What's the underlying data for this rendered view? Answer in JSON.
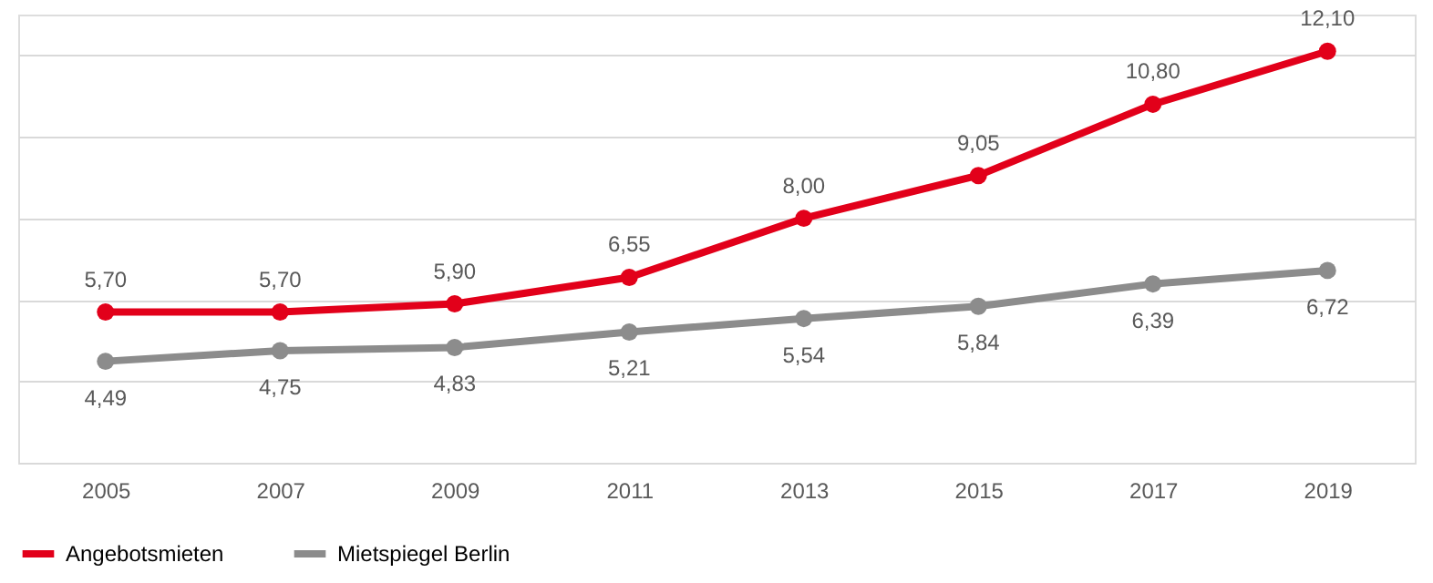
{
  "chart_data": {
    "type": "line",
    "categories": [
      "2005",
      "2007",
      "2009",
      "2011",
      "2013",
      "2015",
      "2017",
      "2019"
    ],
    "series": [
      {
        "name": "Angebotsmieten",
        "color": "#e2001a",
        "values": [
          5.7,
          5.7,
          5.9,
          6.55,
          8.0,
          9.05,
          10.8,
          12.1
        ],
        "value_labels": [
          "5,70",
          "5,70",
          "5,90",
          "6,55",
          "8,00",
          "9,05",
          "10,80",
          "12,10"
        ]
      },
      {
        "name": "Mietspiegel Berlin",
        "color": "#8c8c8c",
        "values": [
          4.49,
          4.75,
          4.83,
          5.21,
          5.54,
          5.84,
          6.39,
          6.72
        ],
        "value_labels": [
          "4,49",
          "4,75",
          "4,83",
          "5,21",
          "5,54",
          "5,84",
          "6,39",
          "6,72"
        ]
      }
    ],
    "ylim": [
      2,
      13
    ],
    "yticks": [
      {
        "value": 2,
        "label": null
      },
      {
        "value": 4,
        "label": null
      },
      {
        "value": 6,
        "label": null
      },
      {
        "value": 8,
        "label": null
      },
      {
        "value": 10,
        "label": null
      },
      {
        "value": 12,
        "label": null
      }
    ],
    "tick_labels": "x",
    "grid": "y",
    "legend": "bottom",
    "marker": "circle",
    "line_style": "solid"
  }
}
